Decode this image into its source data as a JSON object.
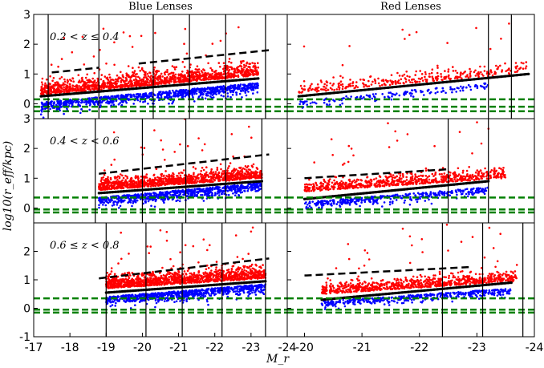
{
  "figure": {
    "ylabel": "log10(r_eff/kpc)",
    "xlabel": "M_r"
  },
  "chart_data": {
    "type": "scatter",
    "columns": [
      {
        "title": "Blue Lenses",
        "xlim": [
          -17,
          -24
        ],
        "xticks": [
          "-17",
          "-18",
          "-19",
          "-20",
          "-21",
          "-22",
          "-23",
          "-24"
        ],
        "xtick_values": [
          -17,
          -18,
          -19,
          -20,
          -21,
          -22,
          -23,
          -24
        ]
      },
      {
        "title": "Red Lenses",
        "xlim": [
          -19.7,
          -24
        ],
        "xticks": [
          "-20",
          "-21",
          "-22",
          "-23",
          "-24"
        ],
        "xtick_values": [
          -20,
          -21,
          -22,
          -23,
          -24
        ]
      }
    ],
    "rows": [
      {
        "label": "0.2 < z ≤ 0.4",
        "ylim": [
          -0.5,
          3.0
        ],
        "yticks": [
          "3",
          "2",
          "1",
          "0"
        ],
        "ytick_values": [
          3,
          2,
          1,
          0
        ],
        "panels": [
          {
            "bin_edges": [
              -17.4,
              -18.8,
              -20.3,
              -21.3,
              -22.3,
              -23.4
            ],
            "dashed_black": {
              "x": [
                -17.5,
                -23.5
              ],
              "y": [
                1.05,
                1.8
              ],
              "gap": [
                -18.8,
                -19.9
              ]
            },
            "green_lines": [
              0.15,
              -0.1,
              -0.25
            ],
            "red": {
              "x": [
                -17.2,
                -23.2
              ],
              "center": [
                0.3,
                0.95
              ],
              "spread": 0.35,
              "n": 1300
            },
            "blue": {
              "x": [
                -17.2,
                -23.2
              ],
              "center": [
                0.05,
                0.7
              ],
              "spread": 0.25,
              "n": 900
            },
            "black": {
              "x": [
                -17.2,
                -23.2
              ],
              "y": [
                0.25,
                0.85
              ]
            }
          },
          {
            "bin_edges": [
              -23.2,
              -23.6
            ],
            "dashed_black": null,
            "green_lines": [
              0.15,
              -0.1,
              -0.25
            ],
            "red": {
              "x": [
                -19.9,
                -23.9
              ],
              "center": [
                0.35,
                1.05
              ],
              "spread": 0.3,
              "n": 320
            },
            "blue": {
              "x": [
                -19.9,
                -23.2
              ],
              "center": [
                0.1,
                0.7
              ],
              "spread": 0.2,
              "n": 160
            },
            "black": {
              "x": [
                -19.9,
                -23.9
              ],
              "y": [
                0.25,
                1.0
              ]
            }
          }
        ]
      },
      {
        "label": "0.4 < z < 0.6",
        "ylim": [
          -0.5,
          3.0
        ],
        "yticks": [
          "3",
          "2",
          "1",
          "0"
        ],
        "ytick_values": [
          3,
          2,
          1,
          0
        ],
        "panels": [
          {
            "bin_edges": [
              -18.7,
              -20.0,
              -21.2,
              -22.3,
              -23.3
            ],
            "dashed_black": {
              "x": [
                -18.8,
                -23.5
              ],
              "y": [
                1.15,
                1.8
              ],
              "gap": null
            },
            "green_lines": [
              0.35,
              -0.05,
              -0.15
            ],
            "red": {
              "x": [
                -18.8,
                -23.3
              ],
              "center": [
                0.6,
                1.0
              ],
              "spread": 0.3,
              "n": 1100
            },
            "blue": {
              "x": [
                -18.8,
                -23.3
              ],
              "center": [
                0.35,
                0.85
              ],
              "spread": 0.25,
              "n": 700
            },
            "black": {
              "x": [
                -18.8,
                -23.3
              ],
              "y": [
                0.5,
                0.9
              ]
            }
          },
          {
            "bin_edges": [
              -22.5,
              -23.2
            ],
            "dashed_black": {
              "x": [
                -20.0,
                -22.5
              ],
              "y": [
                1.0,
                1.3
              ],
              "gap": null
            },
            "green_lines": [
              0.35,
              -0.05,
              -0.15
            ],
            "red": {
              "x": [
                -20.0,
                -23.5
              ],
              "center": [
                0.55,
                1.0
              ],
              "spread": 0.3,
              "n": 700
            },
            "blue": {
              "x": [
                -20.0,
                -23.2
              ],
              "center": [
                0.2,
                0.7
              ],
              "spread": 0.2,
              "n": 380
            },
            "black": {
              "x": [
                -20.0,
                -23.2
              ],
              "y": [
                0.3,
                0.9
              ]
            }
          }
        ]
      },
      {
        "label": "0.6 ≤ z < 0.8",
        "ylim": [
          -1.0,
          3.0
        ],
        "yticks": [
          "2",
          "1",
          "0",
          "-1"
        ],
        "ytick_values": [
          2,
          1,
          0,
          -1
        ],
        "bottom_extra_tick": "-1",
        "panels": [
          {
            "bin_edges": [
              -19.0,
              -20.1,
              -21.1,
              -22.2,
              -23.4
            ],
            "dashed_black": {
              "x": [
                -18.8,
                -23.5
              ],
              "y": [
                1.05,
                1.75
              ],
              "gap": null
            },
            "green_lines": [
              0.35,
              -0.05,
              -0.15
            ],
            "red": {
              "x": [
                -19.0,
                -23.4
              ],
              "center": [
                0.7,
                1.05
              ],
              "spread": 0.35,
              "n": 1200
            },
            "blue": {
              "x": [
                -19.0,
                -23.4
              ],
              "center": [
                0.4,
                0.85
              ],
              "spread": 0.25,
              "n": 800
            },
            "black": {
              "x": [
                -19.0,
                -23.4
              ],
              "y": [
                0.55,
                0.95
              ]
            }
          },
          {
            "bin_edges": [
              -22.4,
              -23.1,
              -23.8
            ],
            "dashed_black": {
              "x": [
                -20.0,
                -22.9
              ],
              "y": [
                1.15,
                1.45
              ],
              "gap": null
            },
            "green_lines": [
              0.35,
              -0.05,
              -0.15
            ],
            "red": {
              "x": [
                -20.3,
                -23.7
              ],
              "center": [
                0.5,
                0.95
              ],
              "spread": 0.3,
              "n": 800
            },
            "blue": {
              "x": [
                -20.3,
                -23.6
              ],
              "center": [
                0.25,
                0.7
              ],
              "spread": 0.2,
              "n": 420
            },
            "black": {
              "x": [
                -20.3,
                -23.6
              ],
              "y": [
                0.3,
                0.9
              ]
            }
          }
        ]
      }
    ]
  }
}
